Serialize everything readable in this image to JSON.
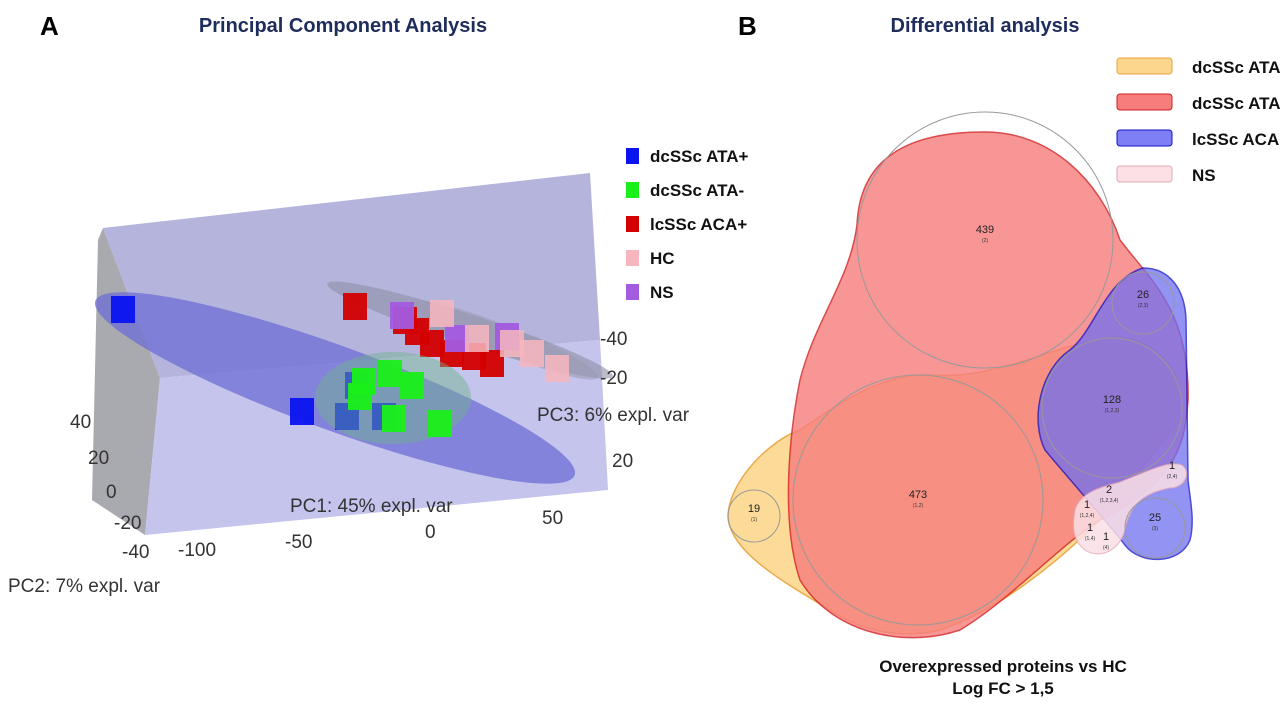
{
  "chart_data": [
    {
      "type": "scatter",
      "panel": "A",
      "title": "Principal Component Analysis",
      "xlabel": "PC1: 45% expl. var",
      "ylabel": "PC2: 7% expl. var",
      "zlabel": "PC3: 6% expl. var",
      "x_ticks": [
        "-100",
        "-50",
        "0",
        "50"
      ],
      "y_ticks": [
        "40",
        "20",
        "0",
        "-20",
        "-40"
      ],
      "z_ticks": [
        "-40",
        "-20",
        "20"
      ],
      "legend": [
        {
          "label": "dcSSc ATA+",
          "color": "#0a14f0"
        },
        {
          "label": "dcSSc ATA-",
          "color": "#19f019"
        },
        {
          "label": "lcSSc ACA+",
          "color": "#d40000"
        },
        {
          "label": "HC",
          "color": "#f7b6bd"
        },
        {
          "label": "NS",
          "color": "#a35be0"
        }
      ],
      "legend_position": "right"
    },
    {
      "type": "venn",
      "panel": "B",
      "title": "Differential analysis",
      "legend": [
        {
          "label": "dcSSc ATA-",
          "color": "#fcd68c"
        },
        {
          "label": "dcSSc ATA+",
          "color": "#f77d7d"
        },
        {
          "label": "lcSSc ACA+",
          "color": "#7f7ff5"
        },
        {
          "label": "NS",
          "color": "#fbe0e6"
        }
      ],
      "legend_position": "top-right",
      "regions": [
        {
          "count": "439",
          "sets": "(2)"
        },
        {
          "count": "26",
          "sets": "(2,3)"
        },
        {
          "count": "128",
          "sets": "(1,2,3)"
        },
        {
          "count": "473",
          "sets": "(1,2)"
        },
        {
          "count": "19",
          "sets": "(1)"
        },
        {
          "count": "25",
          "sets": "(3)"
        },
        {
          "count": "1",
          "sets": "(2,4)"
        },
        {
          "count": "2",
          "sets": "(1,2,3,4)"
        },
        {
          "count": "1",
          "sets": "(1,2,4)"
        },
        {
          "count": "1",
          "sets": "(1,4)"
        },
        {
          "count": "1",
          "sets": "(4)"
        }
      ],
      "caption_line1": "Overexpressed proteins vs HC",
      "caption_line2": "Log FC > 1,5"
    }
  ],
  "labels": {
    "panel_a": "A",
    "panel_b": "B"
  }
}
